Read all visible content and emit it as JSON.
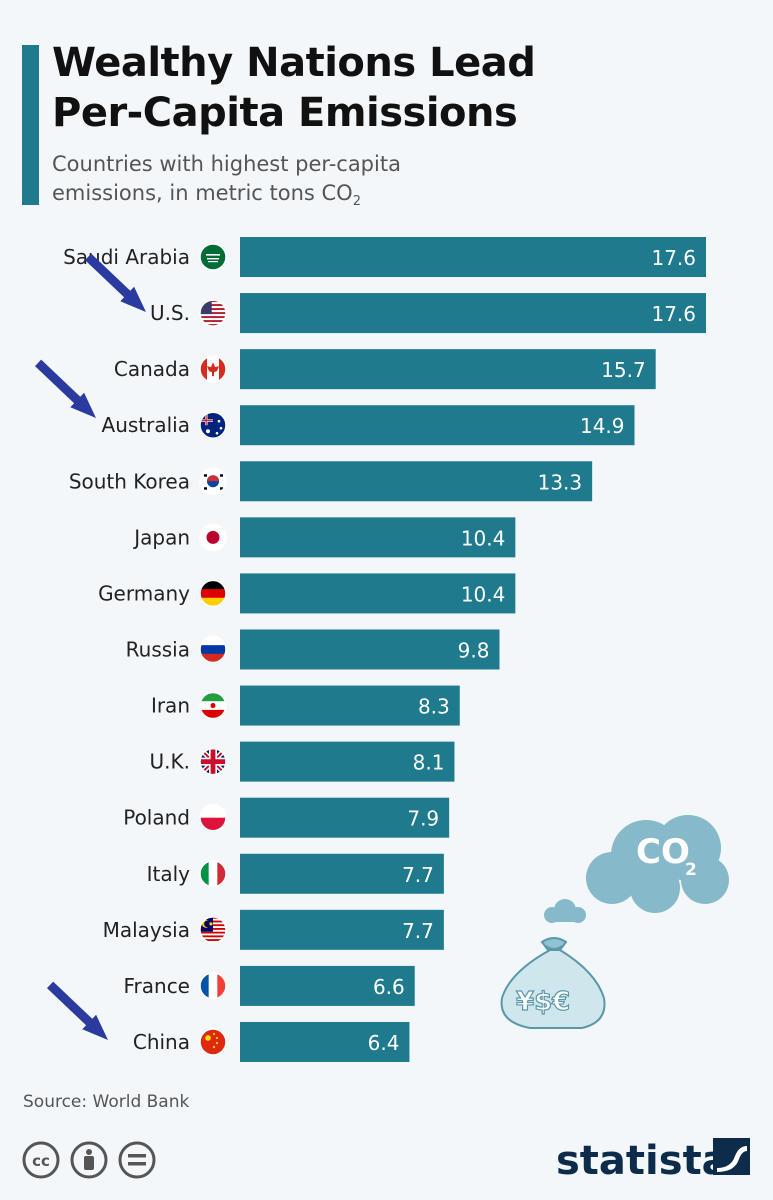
{
  "header": {
    "title_line1": "Wealthy Nations Lead",
    "title_line2": "Per-Capita Emissions",
    "subtitle_line1": "Countries with highest per-capita",
    "subtitle_line2": "emissions, in metric tons CO",
    "subtitle_sub": "2"
  },
  "chart_data": {
    "type": "bar",
    "orientation": "horizontal",
    "categories": [
      "Saudi Arabia",
      "U.S.",
      "Canada",
      "Australia",
      "South Korea",
      "Japan",
      "Germany",
      "Russia",
      "Iran",
      "U.K.",
      "Poland",
      "Italy",
      "Malaysia",
      "France",
      "China"
    ],
    "values": [
      17.6,
      17.6,
      15.7,
      14.9,
      13.3,
      10.4,
      10.4,
      9.8,
      8.3,
      8.1,
      7.9,
      7.7,
      7.7,
      6.6,
      6.4
    ],
    "value_labels": [
      "17.6",
      "17.6",
      "15.7",
      "14.9",
      "13.3",
      "10.4",
      "10.4",
      "9.8",
      "8.3",
      "8.1",
      "7.9",
      "7.7",
      "7.7",
      "6.6",
      "6.4"
    ],
    "title": "Wealthy Nations Lead Per-Capita Emissions",
    "subtitle": "Countries with highest per-capita emissions, in metric tons CO2",
    "xlim": [
      0,
      17.6
    ],
    "grid": false,
    "bar_color": "#1e7a8c",
    "flag_icons": [
      "saudi-arabia-flag-icon",
      "us-flag-icon",
      "canada-flag-icon",
      "australia-flag-icon",
      "south-korea-flag-icon",
      "japan-flag-icon",
      "germany-flag-icon",
      "russia-flag-icon",
      "iran-flag-icon",
      "uk-flag-icon",
      "poland-flag-icon",
      "italy-flag-icon",
      "malaysia-flag-icon",
      "france-flag-icon",
      "china-flag-icon"
    ],
    "highlight_arrows": [
      "U.S.",
      "Australia",
      "China"
    ]
  },
  "decoration": {
    "cloud_text": "CO",
    "cloud_sub": "2",
    "bag_text": "¥$€"
  },
  "footer": {
    "source": "Source: World Bank",
    "brand": "statista",
    "license_icons": [
      "cc-icon",
      "attribution-icon",
      "no-derivatives-icon"
    ]
  },
  "colors": {
    "accent": "#1e7a8c",
    "arrow": "#2b3a9e",
    "cloud": "#86b9c9"
  }
}
